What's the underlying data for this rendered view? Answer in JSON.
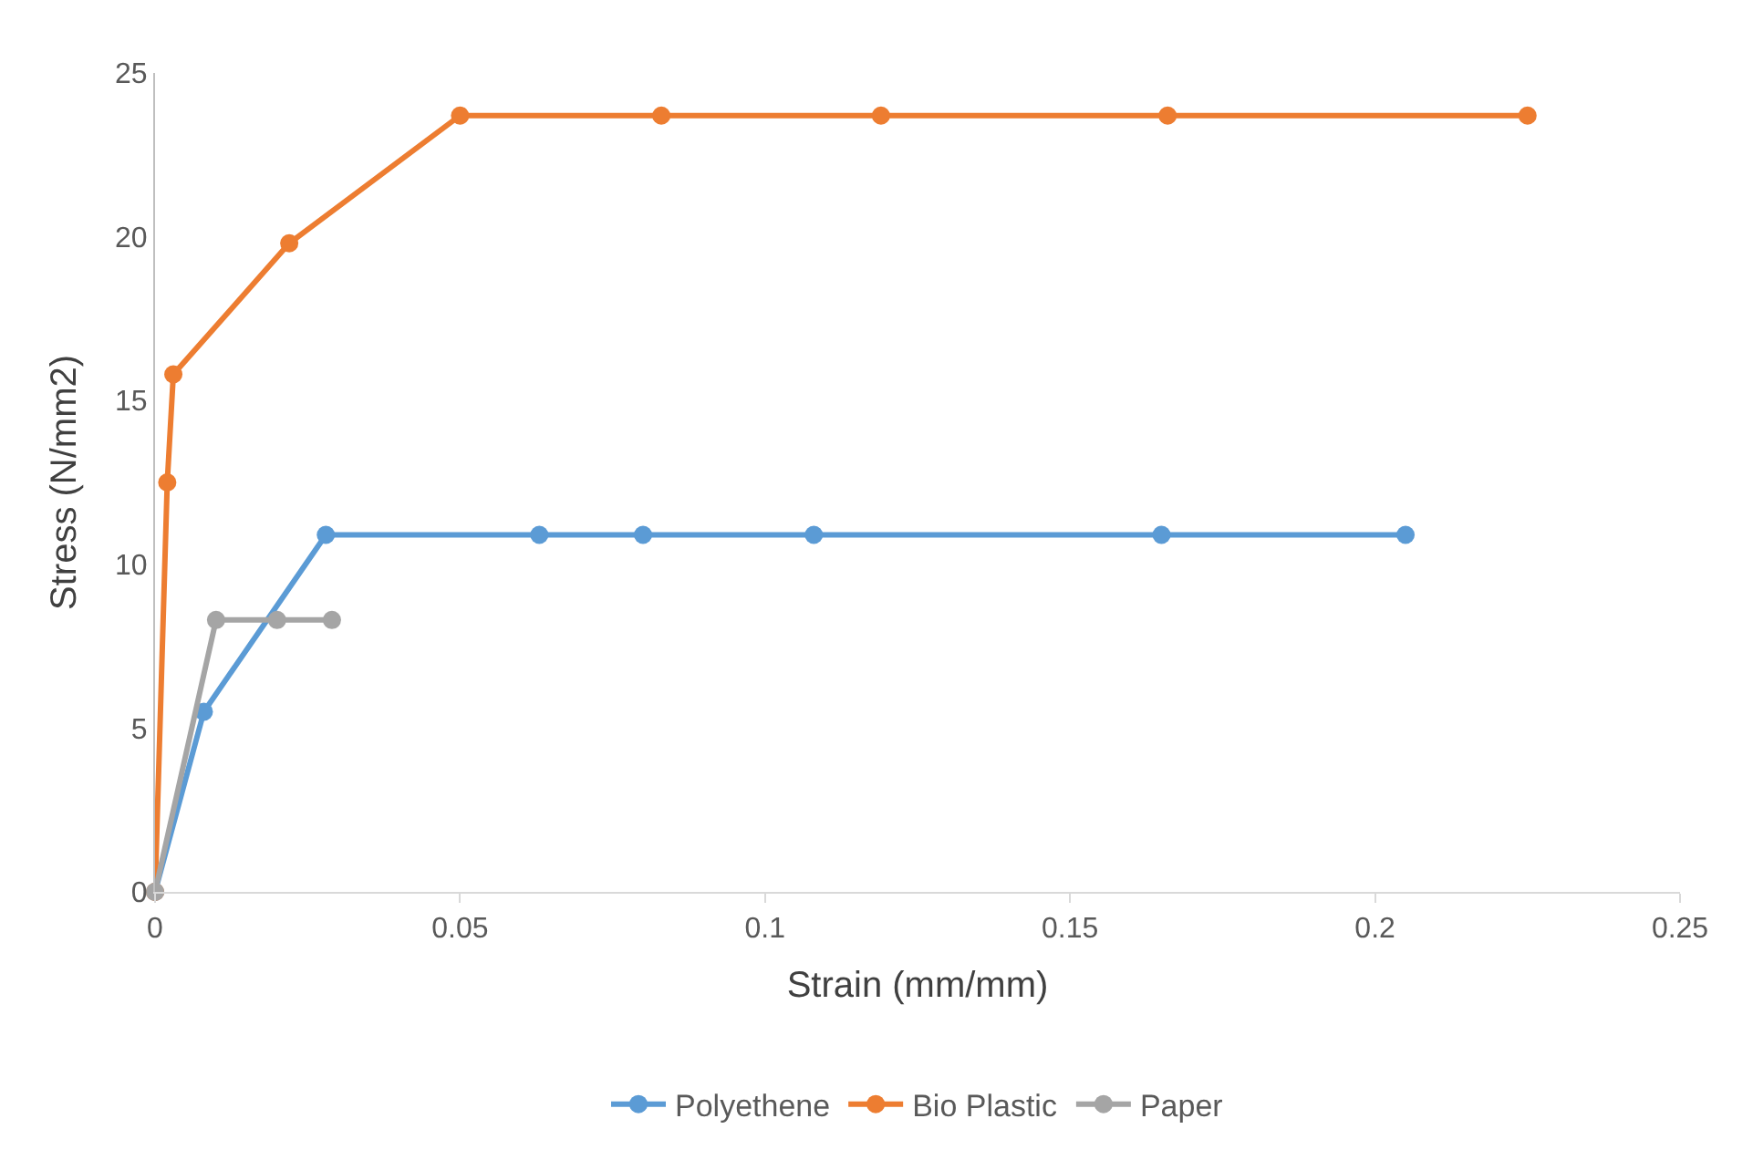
{
  "chart_data": {
    "type": "line",
    "xlabel": "Strain (mm/mm)",
    "ylabel": "Stress (N/mm2)",
    "series": [
      {
        "name": "Polyethene",
        "color": "#5b9bd5",
        "x": [
          0,
          0.008,
          0.028,
          0.063,
          0.08,
          0.108,
          0.165,
          0.205
        ],
        "values": [
          0,
          5.5,
          10.9,
          10.9,
          10.9,
          10.9,
          10.9,
          10.9
        ]
      },
      {
        "name": "Bio Plastic",
        "color": "#ed7d31",
        "x": [
          0,
          0.002,
          0.003,
          0.022,
          0.05,
          0.083,
          0.119,
          0.166,
          0.225
        ],
        "values": [
          0,
          12.5,
          15.8,
          19.8,
          23.7,
          23.7,
          23.7,
          23.7,
          23.7
        ]
      },
      {
        "name": "Paper",
        "color": "#a5a5a5",
        "x": [
          0,
          0.01,
          0.02,
          0.029
        ],
        "values": [
          0,
          8.3,
          8.3,
          8.3
        ]
      }
    ],
    "xlim": [
      0,
      0.25
    ],
    "xticks": [
      0,
      0.05,
      0.1,
      0.15,
      0.2,
      0.25
    ],
    "ylim": [
      0,
      25
    ],
    "yticks": [
      0,
      5,
      10,
      15,
      20,
      25
    ],
    "grid": false,
    "legend": "bottom",
    "marker": "circle",
    "line_style": "solid"
  }
}
